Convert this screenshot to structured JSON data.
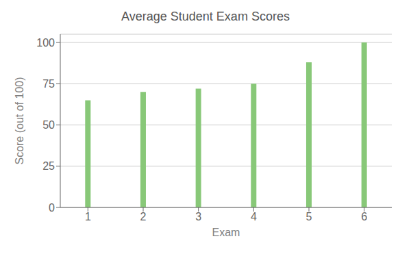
{
  "chart_data": {
    "type": "bar",
    "title": "Average Student Exam Scores",
    "xlabel": "Exam",
    "ylabel": "Score (out of 100)",
    "categories": [
      1,
      2,
      3,
      4,
      5,
      6
    ],
    "values": [
      65,
      70,
      72,
      75,
      88,
      100
    ],
    "color": "#88C878",
    "ylim": [
      0,
      105
    ],
    "yticks": [
      0,
      25,
      50,
      75,
      100
    ],
    "grid": true
  }
}
